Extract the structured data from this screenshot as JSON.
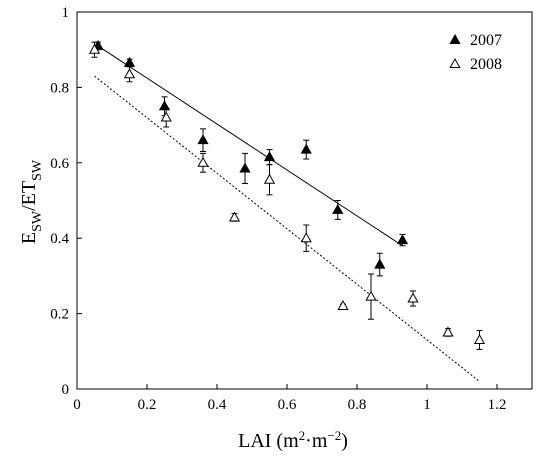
{
  "chart_data": {
    "type": "scatter",
    "xlabel": {
      "main": "LAI (m",
      "sup1": "2",
      "mid": "·m",
      "sup2": "−2",
      "end": ")"
    },
    "ylabel": {
      "p1": "E",
      "s1": "SW",
      "p2": "/ET",
      "s2": "SW"
    },
    "xlim": [
      0,
      1.3
    ],
    "ylim": [
      0,
      1.0
    ],
    "xticks": [
      0,
      0.2,
      0.4,
      0.6,
      0.8,
      1,
      1.2
    ],
    "yticks": [
      0,
      0.2,
      0.4,
      0.6,
      0.8,
      1
    ],
    "xtick_labels": [
      "0",
      "0.2",
      "0.4",
      "0.6",
      "0.8",
      "1",
      "1.2"
    ],
    "ytick_labels": [
      "0",
      "0.2",
      "0.4",
      "0.6",
      "0.8",
      "1"
    ],
    "grid": false,
    "legend_position": "top-right",
    "series": [
      {
        "name": "2007",
        "marker": "filled-triangle",
        "color": "#000000",
        "x": [
          0.06,
          0.15,
          0.25,
          0.36,
          0.48,
          0.55,
          0.655,
          0.745,
          0.865,
          0.93
        ],
        "y": [
          0.91,
          0.865,
          0.75,
          0.66,
          0.585,
          0.615,
          0.635,
          0.475,
          0.33,
          0.395
        ],
        "err": [
          0.01,
          0.01,
          0.025,
          0.03,
          0.04,
          0.02,
          0.025,
          0.025,
          0.03,
          0.015
        ],
        "fit": {
          "style": "solid",
          "x": [
            0.06,
            0.93
          ],
          "y": [
            0.91,
            0.38
          ]
        }
      },
      {
        "name": "2008",
        "marker": "open-triangle",
        "color": "#000000",
        "x": [
          0.05,
          0.15,
          0.255,
          0.36,
          0.45,
          0.55,
          0.655,
          0.76,
          0.84,
          0.96,
          1.06,
          1.15
        ],
        "y": [
          0.9,
          0.835,
          0.72,
          0.6,
          0.455,
          0.555,
          0.4,
          0.22,
          0.245,
          0.24,
          0.15,
          0.13
        ],
        "err": [
          0.02,
          0.02,
          0.025,
          0.025,
          0.01,
          0.04,
          0.035,
          0.005,
          0.06,
          0.02,
          0.01,
          0.025
        ],
        "fit": {
          "style": "dotted",
          "x": [
            0.05,
            1.15
          ],
          "y": [
            0.83,
            0.02
          ]
        }
      }
    ]
  }
}
